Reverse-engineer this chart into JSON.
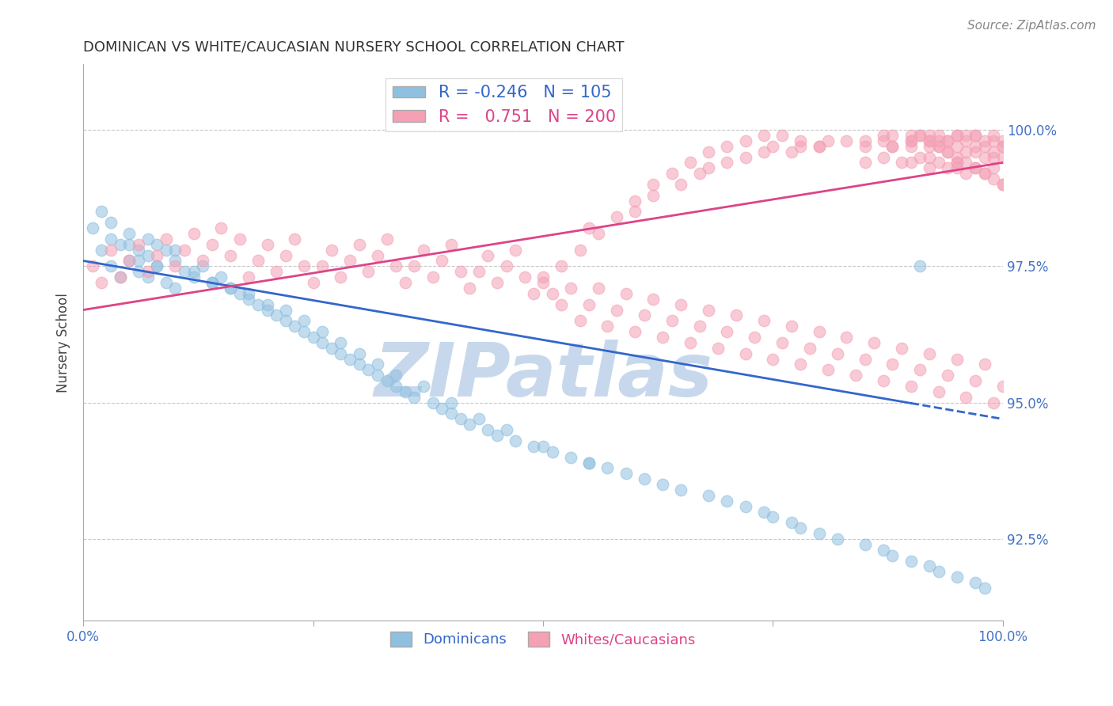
{
  "title": "DOMINICAN VS WHITE/CAUCASIAN NURSERY SCHOOL CORRELATION CHART",
  "source": "Source: ZipAtlas.com",
  "ylabel": "Nursery School",
  "ytick_labels": [
    "92.5%",
    "95.0%",
    "97.5%",
    "100.0%"
  ],
  "ytick_values": [
    92.5,
    95.0,
    97.5,
    100.0
  ],
  "xlim": [
    0.0,
    100.0
  ],
  "ylim": [
    91.0,
    101.2
  ],
  "legend_blue_r": "-0.246",
  "legend_blue_n": "105",
  "legend_pink_r": "0.751",
  "legend_pink_n": "200",
  "blue_color": "#90C0E0",
  "pink_color": "#F4A0B5",
  "blue_line_color": "#3366CC",
  "pink_line_color": "#DD4488",
  "title_color": "#333333",
  "axis_label_color": "#4472C4",
  "grid_color": "#BBBBBB",
  "watermark_color": "#C8D8EC",
  "background": "#FFFFFF",
  "blue_scatter_x": [
    1,
    2,
    2,
    3,
    3,
    4,
    4,
    5,
    5,
    6,
    6,
    7,
    7,
    8,
    8,
    9,
    9,
    10,
    10,
    11,
    12,
    13,
    14,
    15,
    16,
    17,
    18,
    19,
    20,
    21,
    22,
    23,
    24,
    25,
    26,
    27,
    28,
    29,
    30,
    31,
    32,
    33,
    34,
    35,
    36,
    38,
    39,
    40,
    41,
    42,
    44,
    45,
    47,
    49,
    51,
    53,
    55,
    57,
    59,
    61,
    63,
    65,
    68,
    70,
    72,
    74,
    75,
    77,
    78,
    80,
    82,
    85,
    87,
    88,
    90,
    92,
    93,
    95,
    97,
    98,
    3,
    5,
    6,
    7,
    8,
    10,
    12,
    14,
    16,
    18,
    20,
    22,
    24,
    26,
    28,
    30,
    32,
    34,
    37,
    40,
    43,
    46,
    50,
    55,
    91
  ],
  "blue_scatter_y": [
    98.2,
    98.5,
    97.8,
    98.0,
    97.5,
    97.9,
    97.3,
    98.1,
    97.6,
    97.8,
    97.4,
    97.7,
    97.3,
    97.9,
    97.5,
    97.8,
    97.2,
    97.6,
    97.1,
    97.4,
    97.3,
    97.5,
    97.2,
    97.3,
    97.1,
    97.0,
    96.9,
    96.8,
    96.7,
    96.6,
    96.5,
    96.4,
    96.3,
    96.2,
    96.1,
    96.0,
    95.9,
    95.8,
    95.7,
    95.6,
    95.5,
    95.4,
    95.3,
    95.2,
    95.1,
    95.0,
    94.9,
    94.8,
    94.7,
    94.6,
    94.5,
    94.4,
    94.3,
    94.2,
    94.1,
    94.0,
    93.9,
    93.8,
    93.7,
    93.6,
    93.5,
    93.4,
    93.3,
    93.2,
    93.1,
    93.0,
    92.9,
    92.8,
    92.7,
    92.6,
    92.5,
    92.4,
    92.3,
    92.2,
    92.1,
    92.0,
    91.9,
    91.8,
    91.7,
    91.6,
    98.3,
    97.9,
    97.6,
    98.0,
    97.5,
    97.8,
    97.4,
    97.2,
    97.1,
    97.0,
    96.8,
    96.7,
    96.5,
    96.3,
    96.1,
    95.9,
    95.7,
    95.5,
    95.3,
    95.0,
    94.7,
    94.5,
    94.2,
    93.9,
    97.5
  ],
  "pink_scatter_x": [
    1,
    2,
    3,
    4,
    5,
    6,
    7,
    8,
    9,
    10,
    11,
    12,
    13,
    14,
    15,
    16,
    17,
    18,
    19,
    20,
    21,
    22,
    23,
    24,
    25,
    26,
    27,
    28,
    29,
    30,
    31,
    32,
    33,
    34,
    35,
    36,
    37,
    38,
    39,
    40,
    41,
    42,
    43,
    44,
    45,
    46,
    47,
    48,
    49,
    50,
    51,
    52,
    53,
    54,
    55,
    56,
    57,
    58,
    59,
    60,
    61,
    62,
    63,
    64,
    65,
    66,
    67,
    68,
    69,
    70,
    71,
    72,
    73,
    74,
    75,
    76,
    77,
    78,
    79,
    80,
    81,
    82,
    83,
    84,
    85,
    86,
    87,
    88,
    89,
    90,
    91,
    92,
    93,
    94,
    95,
    96,
    97,
    98,
    99,
    100,
    55,
    60,
    62,
    65,
    67,
    68,
    70,
    72,
    74,
    75,
    77,
    78,
    80,
    81,
    83,
    85,
    87,
    88,
    90,
    91,
    92,
    93,
    94,
    95,
    96,
    97,
    98,
    99,
    100,
    85,
    87,
    88,
    90,
    91,
    92,
    93,
    94,
    95,
    96,
    97,
    98,
    99,
    100,
    90,
    92,
    93,
    94,
    95,
    96,
    97,
    98,
    99,
    100,
    88,
    90,
    92,
    93,
    94,
    95,
    96,
    97,
    98,
    99,
    100,
    85,
    87,
    89,
    91,
    92,
    93,
    94,
    95,
    96,
    97,
    98,
    99,
    100,
    90,
    92,
    95,
    97,
    99,
    100,
    95,
    50,
    52,
    54,
    56,
    58,
    60,
    62,
    64,
    66,
    68,
    70,
    72,
    74,
    76,
    78,
    80
  ],
  "pink_scatter_y": [
    97.5,
    97.2,
    97.8,
    97.3,
    97.6,
    97.9,
    97.4,
    97.7,
    98.0,
    97.5,
    97.8,
    98.1,
    97.6,
    97.9,
    98.2,
    97.7,
    98.0,
    97.3,
    97.6,
    97.9,
    97.4,
    97.7,
    98.0,
    97.5,
    97.2,
    97.5,
    97.8,
    97.3,
    97.6,
    97.9,
    97.4,
    97.7,
    98.0,
    97.5,
    97.2,
    97.5,
    97.8,
    97.3,
    97.6,
    97.9,
    97.4,
    97.1,
    97.4,
    97.7,
    97.2,
    97.5,
    97.8,
    97.3,
    97.0,
    97.3,
    97.0,
    96.8,
    97.1,
    96.5,
    96.8,
    97.1,
    96.4,
    96.7,
    97.0,
    96.3,
    96.6,
    96.9,
    96.2,
    96.5,
    96.8,
    96.1,
    96.4,
    96.7,
    96.0,
    96.3,
    96.6,
    95.9,
    96.2,
    96.5,
    95.8,
    96.1,
    96.4,
    95.7,
    96.0,
    96.3,
    95.6,
    95.9,
    96.2,
    95.5,
    95.8,
    96.1,
    95.4,
    95.7,
    96.0,
    95.3,
    95.6,
    95.9,
    95.2,
    95.5,
    95.8,
    95.1,
    95.4,
    95.7,
    95.0,
    95.3,
    98.2,
    98.5,
    98.8,
    99.0,
    99.2,
    99.3,
    99.4,
    99.5,
    99.6,
    99.7,
    99.6,
    99.7,
    99.7,
    99.8,
    99.8,
    99.8,
    99.9,
    99.9,
    99.9,
    99.9,
    99.8,
    99.7,
    99.6,
    99.5,
    99.4,
    99.3,
    99.2,
    99.1,
    99.0,
    99.7,
    99.8,
    99.7,
    99.8,
    99.9,
    99.9,
    99.9,
    99.8,
    99.9,
    99.8,
    99.9,
    99.7,
    99.8,
    99.7,
    99.7,
    99.8,
    99.7,
    99.8,
    99.9,
    99.9,
    99.9,
    99.8,
    99.9,
    99.8,
    99.7,
    99.8,
    99.7,
    99.8,
    99.6,
    99.7,
    99.6,
    99.7,
    99.5,
    99.6,
    99.5,
    99.4,
    99.5,
    99.4,
    99.5,
    99.3,
    99.4,
    99.3,
    99.4,
    99.2,
    99.3,
    99.2,
    99.3,
    99.0,
    99.4,
    99.5,
    99.3,
    99.6,
    99.5,
    99.7,
    99.4,
    97.2,
    97.5,
    97.8,
    98.1,
    98.4,
    98.7,
    99.0,
    99.2,
    99.4,
    99.6,
    99.7,
    99.8,
    99.9,
    99.9,
    99.8,
    99.7
  ]
}
